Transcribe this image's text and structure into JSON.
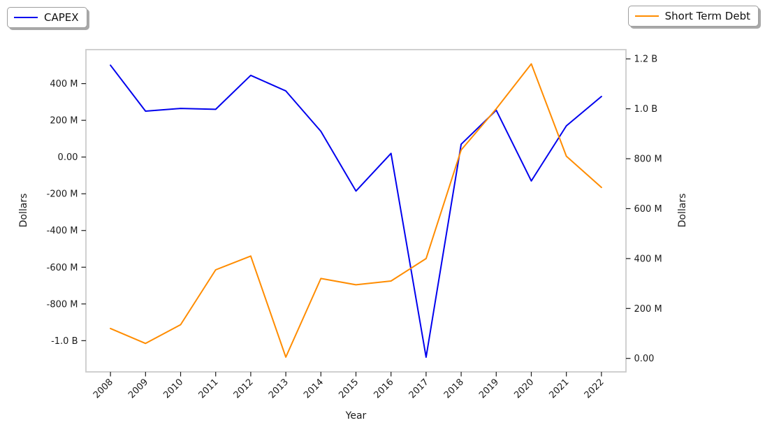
{
  "figure": {
    "background": "#ffffff"
  },
  "legends": [
    {
      "label": "CAPEX",
      "color": "#0000ee"
    },
    {
      "label": "Short Term Debt",
      "color": "#ff8c00"
    }
  ],
  "chart_data": {
    "type": "line",
    "title": "",
    "x": [
      2008,
      2009,
      2010,
      2011,
      2012,
      2013,
      2014,
      2015,
      2016,
      2017,
      2018,
      2019,
      2020,
      2021,
      2022
    ],
    "xtick_labels": [
      "2008",
      "2009",
      "2010",
      "2011",
      "2012",
      "2013",
      "2014",
      "2015",
      "2016",
      "2017",
      "2018",
      "2019",
      "2020",
      "2021",
      "2022"
    ],
    "series": [
      {
        "name": "CAPEX",
        "axis": "left",
        "color": "#0000ee",
        "values_millions_usd": [
          500,
          250,
          265,
          260,
          445,
          360,
          140,
          -185,
          20,
          -1090,
          70,
          255,
          -130,
          170,
          330
        ]
      },
      {
        "name": "Short Term Debt",
        "axis": "right",
        "color": "#ff8c00",
        "values_millions_usd": [
          120,
          60,
          135,
          355,
          410,
          5,
          320,
          295,
          310,
          400,
          835,
          1000,
          1180,
          810,
          685
        ]
      }
    ],
    "xlabel": "Year",
    "ylabel_left": "Dollars",
    "ylabel_right": "Dollars",
    "xlim": [
      2007.3,
      2022.7
    ],
    "ylim_left_millions": [
      -1170,
      585
    ],
    "ylim_right_millions": [
      -54,
      1237
    ],
    "yticks_left": {
      "values_millions": [
        400,
        200,
        0,
        -200,
        -400,
        -600,
        -800,
        -1000
      ],
      "labels": [
        "400 M",
        "200 M",
        "0.00",
        "-200 M",
        "-400 M",
        "-600 M",
        "-800 M",
        "-1.0 B"
      ]
    },
    "yticks_right": {
      "values_millions": [
        1200,
        1000,
        800,
        600,
        400,
        200,
        0
      ],
      "labels": [
        "1.2 B",
        "1.0 B",
        "800 M",
        "600 M",
        "400 M",
        "200 M",
        "0.00"
      ]
    },
    "grid": false,
    "legend_positions": [
      "figure-top-left",
      "figure-top-right"
    ],
    "x_tick_rotation_deg": 45,
    "tick_label_color": "#1a1a1a",
    "spine_color": "#cbcbcb"
  }
}
